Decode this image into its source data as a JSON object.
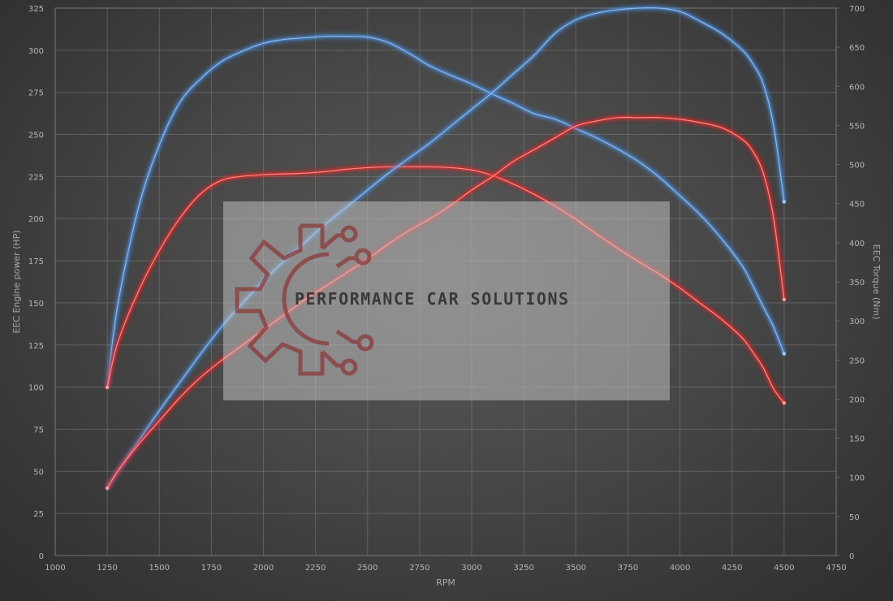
{
  "chart_data": {
    "type": "line",
    "title": "",
    "xlabel": "RPM",
    "ylabel": "EEC Engine power (HP)",
    "y2label": "EEC Torque (Nm)",
    "xlim": [
      1000,
      4750
    ],
    "ylim": [
      0,
      325
    ],
    "y2lim": [
      0,
      700
    ],
    "x_ticks": [
      1000,
      1250,
      1500,
      1750,
      2000,
      2250,
      2500,
      2750,
      3000,
      3250,
      3500,
      3750,
      4000,
      4250,
      4500,
      4750
    ],
    "y_ticks": [
      0,
      25,
      50,
      75,
      100,
      125,
      150,
      175,
      200,
      225,
      250,
      275,
      300,
      325
    ],
    "y2_ticks": [
      0,
      50,
      100,
      150,
      200,
      250,
      300,
      350,
      400,
      450,
      500,
      550,
      600,
      650,
      700
    ],
    "grid": true,
    "colors": {
      "tuned": "#4a90e2",
      "stock": "#e82a2a"
    },
    "series": [
      {
        "axis": "torque",
        "color": "#4a90e2",
        "x": [
          1250,
          1300,
          1400,
          1500,
          1600,
          1700,
          1800,
          1900,
          2000,
          2100,
          2200,
          2300,
          2400,
          2500,
          2600,
          2700,
          2750,
          2800,
          2900,
          3000,
          3100,
          3200,
          3300,
          3400,
          3500,
          3600,
          3700,
          3800,
          3900,
          4000,
          4100,
          4200,
          4300,
          4350,
          4400,
          4450,
          4500
        ],
        "values": [
          215,
          320,
          445,
          525,
          580,
          610,
          632,
          645,
          655,
          660,
          662,
          664,
          664,
          663,
          656,
          642,
          634,
          626,
          614,
          603,
          590,
          578,
          565,
          558,
          546,
          534,
          520,
          504,
          484,
          460,
          435,
          405,
          370,
          345,
          318,
          292,
          258
        ]
      },
      {
        "axis": "torque",
        "color": "#e82a2a",
        "x": [
          1250,
          1300,
          1400,
          1500,
          1600,
          1700,
          1800,
          1900,
          2000,
          2100,
          2200,
          2300,
          2400,
          2500,
          2600,
          2700,
          2800,
          2900,
          3000,
          3100,
          3200,
          3300,
          3400,
          3500,
          3600,
          3700,
          3800,
          3900,
          4000,
          4100,
          4200,
          4300,
          4350,
          4400,
          4450,
          4500
        ],
        "values": [
          215,
          272,
          338,
          390,
          432,
          463,
          480,
          485,
          487,
          488,
          489,
          491,
          494,
          496,
          497,
          497,
          497,
          496,
          493,
          486,
          475,
          462,
          447,
          430,
          411,
          393,
          376,
          360,
          342,
          322,
          302,
          278,
          260,
          240,
          213,
          195
        ]
      },
      {
        "axis": "power",
        "color": "#4a90e2",
        "x": [
          1250,
          1300,
          1400,
          1500,
          1600,
          1700,
          1800,
          1900,
          2000,
          2100,
          2200,
          2300,
          2400,
          2500,
          2600,
          2700,
          2800,
          2900,
          3000,
          3100,
          3200,
          3300,
          3400,
          3500,
          3600,
          3700,
          3800,
          3900,
          4000,
          4100,
          4200,
          4300,
          4350,
          4400,
          4450,
          4500
        ],
        "values": [
          40,
          50,
          68,
          86,
          103,
          120,
          136,
          150,
          163,
          175,
          186,
          197,
          207,
          217,
          227,
          236,
          245,
          255,
          265,
          275,
          286,
          297,
          310,
          318,
          322,
          324,
          325,
          325,
          323,
          317,
          310,
          300,
          292,
          280,
          255,
          210
        ]
      },
      {
        "axis": "power",
        "color": "#e82a2a",
        "x": [
          1250,
          1300,
          1400,
          1500,
          1600,
          1700,
          1800,
          1900,
          2000,
          2100,
          2200,
          2300,
          2400,
          2500,
          2600,
          2700,
          2800,
          2900,
          3000,
          3100,
          3200,
          3300,
          3400,
          3500,
          3600,
          3700,
          3800,
          3900,
          4000,
          4100,
          4200,
          4300,
          4350,
          4400,
          4450,
          4500
        ],
        "values": [
          40,
          50,
          66,
          80,
          94,
          106,
          116,
          125,
          134,
          143,
          152,
          160,
          168,
          176,
          185,
          193,
          200,
          208,
          217,
          225,
          234,
          241,
          248,
          255,
          258,
          260,
          260,
          260,
          259,
          257,
          254,
          247,
          240,
          227,
          200,
          152
        ]
      }
    ]
  },
  "watermark": {
    "text": "PERFORMANCE CAR SOLUTIONS"
  }
}
